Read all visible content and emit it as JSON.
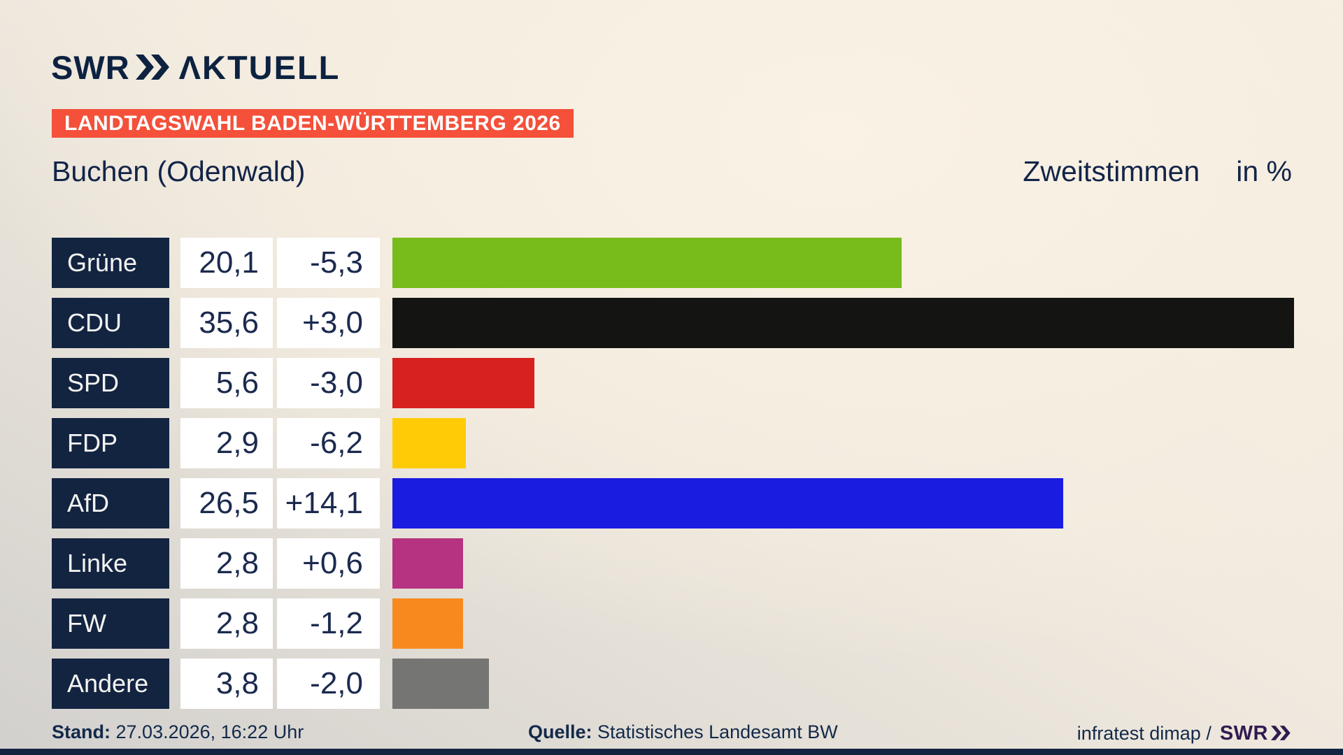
{
  "header": {
    "logo_swr": "SWR",
    "logo_suffix": "ΛKTUELL",
    "badge": "LANDTAGSWAHL BADEN-WÜRTTEMBERG 2026"
  },
  "title": {
    "region": "Buchen (Odenwald)",
    "vote_type": "Zweitstimmen",
    "unit": "in %"
  },
  "chart_data": {
    "type": "bar",
    "orientation": "horizontal",
    "title": "Zweitstimmen in %",
    "region": "Buchen (Odenwald)",
    "categories": [
      "Grüne",
      "CDU",
      "SPD",
      "FDP",
      "AfD",
      "Linke",
      "FW",
      "Andere"
    ],
    "values": [
      20.1,
      35.6,
      5.6,
      2.9,
      26.5,
      2.8,
      2.8,
      3.8
    ],
    "changes": [
      -5.3,
      3.0,
      -3.0,
      -6.2,
      14.1,
      0.6,
      -1.2,
      -2.0
    ],
    "value_labels": [
      "20,1",
      "35,6",
      "5,6",
      "2,9",
      "26,5",
      "2,8",
      "2,8",
      "3,8"
    ],
    "change_labels": [
      "-5,3",
      "+3,0",
      "-3,0",
      "-6,2",
      "+14,1",
      "+0,6",
      "-1,2",
      "-2,0"
    ],
    "bar_colors": [
      "#77bc1a",
      "#141413",
      "#d7211e",
      "#ffcb06",
      "#1a1ce0",
      "#b53380",
      "#f8891f",
      "#757574"
    ],
    "xlim": [
      0,
      37.6
    ],
    "legend": false,
    "grid": false
  },
  "colors": {
    "accent_red": "#f4503a",
    "navy": "#132441",
    "text_navy": "#13294a",
    "credit_purple": "#311b4e"
  },
  "footer": {
    "stand_label": "Stand:",
    "stand_value": "27.03.2026, 16:22 Uhr",
    "quelle_label": "Quelle:",
    "quelle_value": "Statistisches Landesamt BW",
    "credit_text": "infratest dimap /",
    "credit_logo": "SWR"
  }
}
